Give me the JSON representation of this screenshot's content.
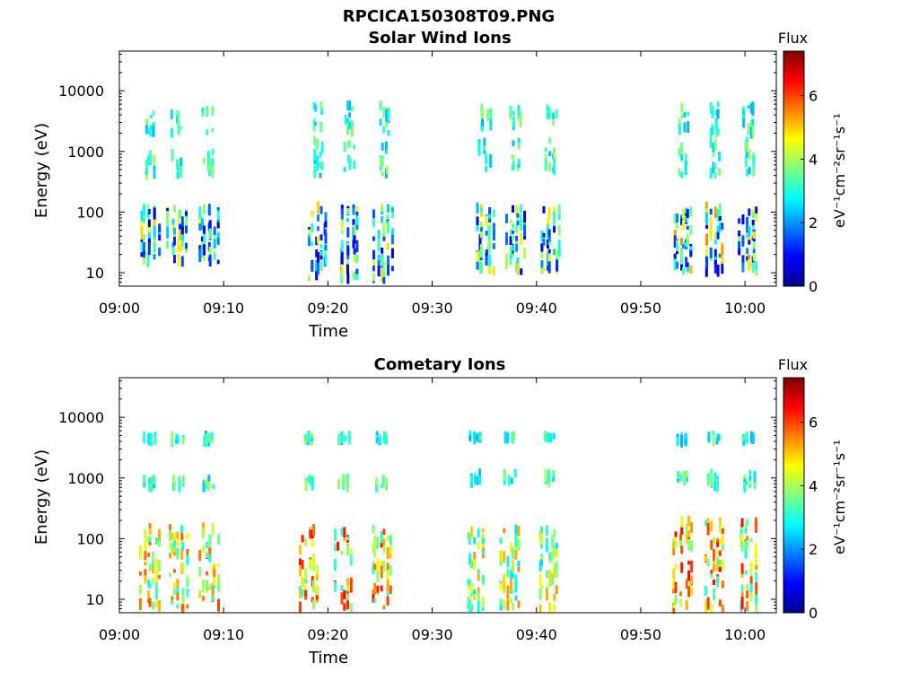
{
  "figure": {
    "title": "RPCICA150308T09.PNG"
  },
  "chart_data": [
    {
      "type": "heatmap",
      "title": "Solar Wind Ions",
      "xlabel": "Time",
      "ylabel": "Energy (eV)",
      "x_scale": "time",
      "y_scale": "log",
      "xlim": [
        "09:00",
        "10:03"
      ],
      "ylim": [
        6,
        45000
      ],
      "x_ticks": [
        "09:00",
        "09:10",
        "09:20",
        "09:30",
        "09:40",
        "09:50",
        "10:00"
      ],
      "y_ticks": [
        10,
        100,
        1000,
        10000
      ],
      "y_tick_labels": [
        "10",
        "100",
        "1000",
        "10000"
      ],
      "colorbar": {
        "label": "Flux",
        "units": "eV⁻¹cm⁻²sr⁻¹s⁻¹",
        "range": [
          0,
          7.4
        ],
        "ticks": [
          0,
          2,
          4,
          6
        ],
        "colormap": "jet"
      },
      "bursts": [
        {
          "start": "09:02",
          "end": "09:10",
          "energy_bands_eV": [
            [
              15,
              120
            ],
            [
              400,
              1000
            ],
            [
              2000,
              5000
            ]
          ],
          "peak_flux": 5
        },
        {
          "start": "09:18",
          "end": "09:27",
          "energy_bands_eV": [
            [
              8,
              120
            ],
            [
              400,
              1500
            ],
            [
              2000,
              6000
            ]
          ],
          "peak_flux": 5
        },
        {
          "start": "09:34",
          "end": "09:43",
          "energy_bands_eV": [
            [
              10,
              120
            ],
            [
              500,
              1500
            ],
            [
              2500,
              5000
            ]
          ],
          "peak_flux": 5
        },
        {
          "start": "09:53",
          "end": "10:02",
          "energy_bands_eV": [
            [
              10,
              120
            ],
            [
              400,
              1500
            ],
            [
              2000,
              6000
            ]
          ],
          "peak_flux": 5.5
        }
      ]
    },
    {
      "type": "heatmap",
      "title": "Cometary Ions",
      "xlabel": "Time",
      "ylabel": "Energy (eV)",
      "x_scale": "time",
      "y_scale": "log",
      "xlim": [
        "09:00",
        "10:03"
      ],
      "ylim": [
        6,
        45000
      ],
      "x_ticks": [
        "09:00",
        "09:10",
        "09:20",
        "09:30",
        "09:40",
        "09:50",
        "10:00"
      ],
      "y_ticks": [
        10,
        100,
        1000,
        10000
      ],
      "y_tick_labels": [
        "10",
        "100",
        "1000",
        "10000"
      ],
      "colorbar": {
        "label": "Flux",
        "units": "eV⁻¹cm⁻²sr⁻¹s⁻¹",
        "range": [
          0,
          7.4
        ],
        "ticks": [
          0,
          2,
          4,
          6
        ],
        "colormap": "jet"
      },
      "bursts": [
        {
          "start": "09:02",
          "end": "09:10",
          "energy_bands_eV": [
            [
              7,
              150
            ],
            [
              700,
              1000
            ],
            [
              4000,
              5000
            ]
          ],
          "peak_flux": 6
        },
        {
          "start": "09:17",
          "end": "09:27",
          "energy_bands_eV": [
            [
              7,
              150
            ],
            [
              700,
              1000
            ],
            [
              4000,
              5000
            ]
          ],
          "peak_flux": 6.5
        },
        {
          "start": "09:33",
          "end": "09:43",
          "energy_bands_eV": [
            [
              7,
              150
            ],
            [
              800,
              1200
            ],
            [
              4500,
              5000
            ]
          ],
          "peak_flux": 5.5
        },
        {
          "start": "09:53",
          "end": "10:02",
          "energy_bands_eV": [
            [
              7,
              200
            ],
            [
              700,
              1200
            ],
            [
              4000,
              5000
            ]
          ],
          "peak_flux": 6.5
        }
      ]
    }
  ]
}
